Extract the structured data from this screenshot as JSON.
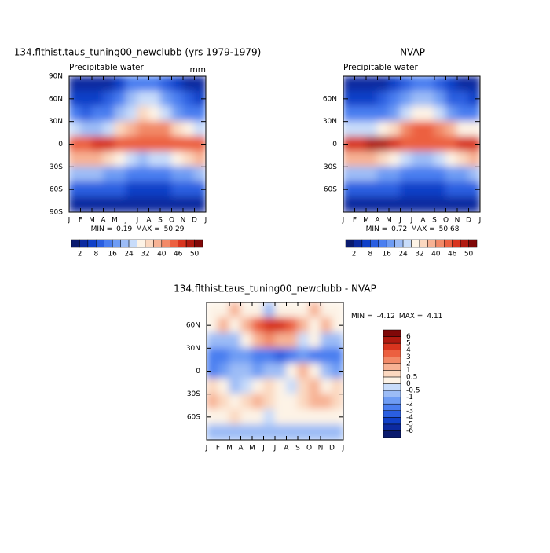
{
  "chart_data": [
    {
      "type": "heatmap",
      "title": "134.flthist.taus_tuning00_newclubb (yrs 1979-1979)",
      "subtitle": "Precipitable water",
      "units": "mm",
      "categories": [
        "J",
        "F",
        "M",
        "A",
        "M",
        "J",
        "J",
        "A",
        "S",
        "O",
        "N",
        "D",
        "J"
      ],
      "y": [
        80,
        60,
        40,
        20,
        0,
        -20,
        -40,
        -60,
        -80
      ],
      "ylim": [
        -90,
        90
      ],
      "yticks": [
        {
          "value": 90,
          "label": "90N"
        },
        {
          "value": 60,
          "label": "60N"
        },
        {
          "value": 30,
          "label": "30N"
        },
        0,
        {
          "value": -30,
          "label": "30S"
        },
        {
          "value": -60,
          "label": "60S"
        },
        {
          "value": -90,
          "label": "90S"
        }
      ],
      "values": [
        [
          3,
          3,
          3,
          4,
          7,
          12,
          15,
          13,
          9,
          6,
          4,
          3
        ],
        [
          6,
          6,
          7,
          9,
          14,
          21,
          26,
          24,
          18,
          12,
          8,
          7
        ],
        [
          12,
          11,
          12,
          15,
          20,
          27,
          32,
          31,
          25,
          18,
          14,
          12
        ],
        [
          24,
          22,
          23,
          27,
          32,
          38,
          42,
          42,
          40,
          34,
          28,
          25
        ],
        [
          44,
          45,
          47,
          47,
          45,
          43,
          43,
          44,
          44,
          44,
          45,
          44
        ],
        [
          38,
          38,
          36,
          33,
          28,
          25,
          23,
          24,
          25,
          28,
          32,
          36
        ],
        [
          22,
          22,
          21,
          19,
          17,
          15,
          14,
          14,
          15,
          17,
          19,
          21
        ],
        [
          11,
          11,
          10,
          9,
          8,
          7,
          7,
          7,
          7,
          8,
          9,
          10
        ],
        [
          3,
          3,
          3,
          2,
          2,
          2,
          2,
          2,
          2,
          2,
          3,
          3
        ]
      ],
      "levels": [
        2,
        5,
        8,
        12,
        16,
        20,
        24,
        28,
        32,
        36,
        40,
        43,
        46,
        48,
        50
      ],
      "colors": [
        "#0a1a6e",
        "#0c2aa0",
        "#1040c8",
        "#2a5ee0",
        "#4a7ef0",
        "#6e9cf4",
        "#9cbcf6",
        "#c8dcfa",
        "#fdf3e6",
        "#fbd8c0",
        "#f7b294",
        "#f28a68",
        "#ec6040",
        "#d8341e",
        "#b01a10",
        "#800808"
      ],
      "cbar_ticks": [
        2,
        8,
        16,
        24,
        32,
        40,
        46,
        50
      ],
      "min_label": "MIN =",
      "min": 0.19,
      "max_label": "MAX =",
      "max": 50.29
    },
    {
      "type": "heatmap",
      "title": "NVAP",
      "subtitle": "Precipitable water",
      "categories": [
        "J",
        "F",
        "M",
        "A",
        "M",
        "J",
        "J",
        "A",
        "S",
        "O",
        "N",
        "D",
        "J"
      ],
      "y": [
        80,
        60,
        40,
        20,
        0,
        -20,
        -40,
        -60,
        -80
      ],
      "ylim": [
        -90,
        90
      ],
      "yticks": [
        {
          "value": 60,
          "label": "60N"
        },
        {
          "value": 30,
          "label": "30N"
        },
        0,
        {
          "value": -30,
          "label": "30S"
        },
        {
          "value": -60,
          "label": "60S"
        }
      ],
      "values": [
        [
          3,
          3,
          3,
          4,
          6,
          11,
          14,
          13,
          9,
          5,
          4,
          3
        ],
        [
          6,
          5,
          6,
          8,
          12,
          18,
          22,
          21,
          16,
          11,
          8,
          6
        ],
        [
          13,
          12,
          13,
          15,
          19,
          25,
          30,
          30,
          24,
          18,
          15,
          13
        ],
        [
          27,
          25,
          26,
          29,
          34,
          40,
          45,
          45,
          42,
          37,
          31,
          28
        ],
        [
          46,
          47,
          48,
          48,
          46,
          44,
          44,
          45,
          45,
          45,
          46,
          46
        ],
        [
          38,
          37,
          37,
          34,
          28,
          24,
          22,
          23,
          24,
          28,
          32,
          36
        ],
        [
          21,
          21,
          21,
          19,
          16,
          14,
          13,
          13,
          14,
          16,
          18,
          20
        ],
        [
          11,
          11,
          10,
          9,
          8,
          7,
          7,
          7,
          7,
          8,
          9,
          10
        ],
        [
          4,
          4,
          4,
          3,
          3,
          2,
          2,
          2,
          3,
          3,
          4,
          4
        ]
      ],
      "levels": [
        2,
        5,
        8,
        12,
        16,
        20,
        24,
        28,
        32,
        36,
        40,
        43,
        46,
        48,
        50
      ],
      "colors": [
        "#0a1a6e",
        "#0c2aa0",
        "#1040c8",
        "#2a5ee0",
        "#4a7ef0",
        "#6e9cf4",
        "#9cbcf6",
        "#c8dcfa",
        "#fdf3e6",
        "#fbd8c0",
        "#f7b294",
        "#f28a68",
        "#ec6040",
        "#d8341e",
        "#b01a10",
        "#800808"
      ],
      "cbar_ticks": [
        2,
        8,
        16,
        24,
        32,
        40,
        46,
        50
      ],
      "min_label": "MIN =",
      "min": 0.72,
      "max_label": "MAX =",
      "max": 50.68
    },
    {
      "type": "heatmap",
      "title": "134.flthist.taus_tuning00_newclubb - NVAP",
      "categories": [
        "J",
        "F",
        "M",
        "A",
        "M",
        "J",
        "J",
        "A",
        "S",
        "O",
        "N",
        "D",
        "J"
      ],
      "y": [
        80,
        60,
        40,
        20,
        0,
        -20,
        -40,
        -60,
        -80
      ],
      "ylim": [
        -90,
        90
      ],
      "yticks": [
        {
          "value": 60,
          "label": "60N"
        },
        {
          "value": 30,
          "label": "30N"
        },
        0,
        {
          "value": -30,
          "label": "30S"
        },
        {
          "value": -60,
          "label": "60S"
        }
      ],
      "values": [
        [
          0,
          0,
          1,
          0,
          0,
          -1,
          0,
          0,
          0,
          1,
          0,
          0
        ],
        [
          0,
          1,
          0,
          1,
          3,
          4,
          4,
          3,
          1,
          0,
          1,
          0
        ],
        [
          -1,
          -1,
          -1,
          0,
          1,
          2,
          1,
          1,
          -0.5,
          0,
          -1,
          -1
        ],
        [
          -3,
          -3,
          -2,
          -2,
          -3,
          -3,
          -4,
          -3,
          -2,
          -3,
          -3,
          -3
        ],
        [
          -3,
          -2,
          -1,
          -1,
          -2,
          -1,
          -1,
          0,
          1,
          0,
          -1,
          -2
        ],
        [
          0.5,
          0,
          -1,
          -0.5,
          0,
          0.5,
          0,
          -0.5,
          0.5,
          1,
          0,
          0.5
        ],
        [
          1,
          0.5,
          0,
          0.5,
          1,
          0.5,
          0,
          0,
          0.5,
          1,
          1,
          0.5
        ],
        [
          0,
          0,
          0.5,
          0,
          0,
          -0.5,
          0,
          0,
          0,
          0,
          0,
          0
        ],
        [
          -1,
          -1,
          -1,
          -1,
          -1,
          -1,
          -1,
          -1,
          -1,
          -1,
          -1,
          -1
        ]
      ],
      "levels": [
        -6,
        -5,
        -4,
        -3,
        -2,
        -1,
        -0.5,
        0,
        0.5,
        1,
        2,
        3,
        4,
        5,
        6
      ],
      "colors": [
        "#0a1a6e",
        "#0c2aa0",
        "#1040c8",
        "#2a5ee0",
        "#4a7ef0",
        "#6e9cf4",
        "#9cbcf6",
        "#c8dcfa",
        "#fdf3e6",
        "#fbd8c0",
        "#f7b294",
        "#f28a68",
        "#ec6040",
        "#d8341e",
        "#b01a10",
        "#800808"
      ],
      "min_label": "MIN =",
      "min": -4.12,
      "max_label": "MAX =",
      "max": 4.11
    }
  ]
}
